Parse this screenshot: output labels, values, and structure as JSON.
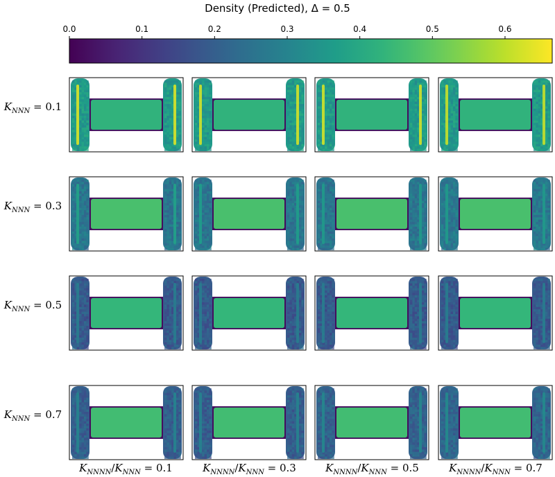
{
  "chart_data": {
    "type": "heatmap",
    "title": "Density (Predicted), Δ = 0.5",
    "colorbar": {
      "colormap": "viridis",
      "range": [
        0.0,
        0.665
      ],
      "ticks": [
        "0.0",
        "0.1",
        "0.2",
        "0.3",
        "0.4",
        "0.5",
        "0.6"
      ],
      "tick_values": [
        0.0,
        0.1,
        0.2,
        0.3,
        0.4,
        0.5,
        0.6
      ]
    },
    "row_labels": [
      "K_NNN = 0.1",
      "K_NNN = 0.3",
      "K_NNN = 0.5",
      "K_NNN = 0.7"
    ],
    "row_values": [
      0.1,
      0.3,
      0.5,
      0.7
    ],
    "column_labels": [
      "K_NNNN/K_NNN = 0.1",
      "K_NNNN/K_NNN = 0.3",
      "K_NNNN/K_NNN = 0.5",
      "K_NNNN/K_NNN = 0.7"
    ],
    "column_values": [
      0.1,
      0.3,
      0.5,
      0.7
    ],
    "panels": [
      {
        "row": 0,
        "col": 0,
        "bridge_density": 0.43,
        "lead_density": 0.36,
        "lead_edge_max": 0.63
      },
      {
        "row": 0,
        "col": 1,
        "bridge_density": 0.43,
        "lead_density": 0.36,
        "lead_edge_max": 0.62
      },
      {
        "row": 0,
        "col": 2,
        "bridge_density": 0.43,
        "lead_density": 0.36,
        "lead_edge_max": 0.62
      },
      {
        "row": 0,
        "col": 3,
        "bridge_density": 0.43,
        "lead_density": 0.36,
        "lead_edge_max": 0.61
      },
      {
        "row": 1,
        "col": 0,
        "bridge_density": 0.47,
        "lead_density": 0.26,
        "lead_edge_max": 0.38
      },
      {
        "row": 1,
        "col": 1,
        "bridge_density": 0.47,
        "lead_density": 0.26,
        "lead_edge_max": 0.37
      },
      {
        "row": 1,
        "col": 2,
        "bridge_density": 0.47,
        "lead_density": 0.26,
        "lead_edge_max": 0.36
      },
      {
        "row": 1,
        "col": 3,
        "bridge_density": 0.47,
        "lead_density": 0.27,
        "lead_edge_max": 0.36
      },
      {
        "row": 2,
        "col": 0,
        "bridge_density": 0.44,
        "lead_density": 0.19,
        "lead_edge_max": 0.28
      },
      {
        "row": 2,
        "col": 1,
        "bridge_density": 0.44,
        "lead_density": 0.19,
        "lead_edge_max": 0.28
      },
      {
        "row": 2,
        "col": 2,
        "bridge_density": 0.44,
        "lead_density": 0.19,
        "lead_edge_max": 0.28
      },
      {
        "row": 2,
        "col": 3,
        "bridge_density": 0.44,
        "lead_density": 0.19,
        "lead_edge_max": 0.28
      },
      {
        "row": 3,
        "col": 0,
        "bridge_density": 0.46,
        "lead_density": 0.2,
        "lead_edge_max": 0.3
      },
      {
        "row": 3,
        "col": 1,
        "bridge_density": 0.46,
        "lead_density": 0.2,
        "lead_edge_max": 0.3
      },
      {
        "row": 3,
        "col": 2,
        "bridge_density": 0.46,
        "lead_density": 0.21,
        "lead_edge_max": 0.31
      },
      {
        "row": 3,
        "col": 3,
        "bridge_density": 0.46,
        "lead_density": 0.22,
        "lead_edge_max": 0.32
      }
    ]
  }
}
